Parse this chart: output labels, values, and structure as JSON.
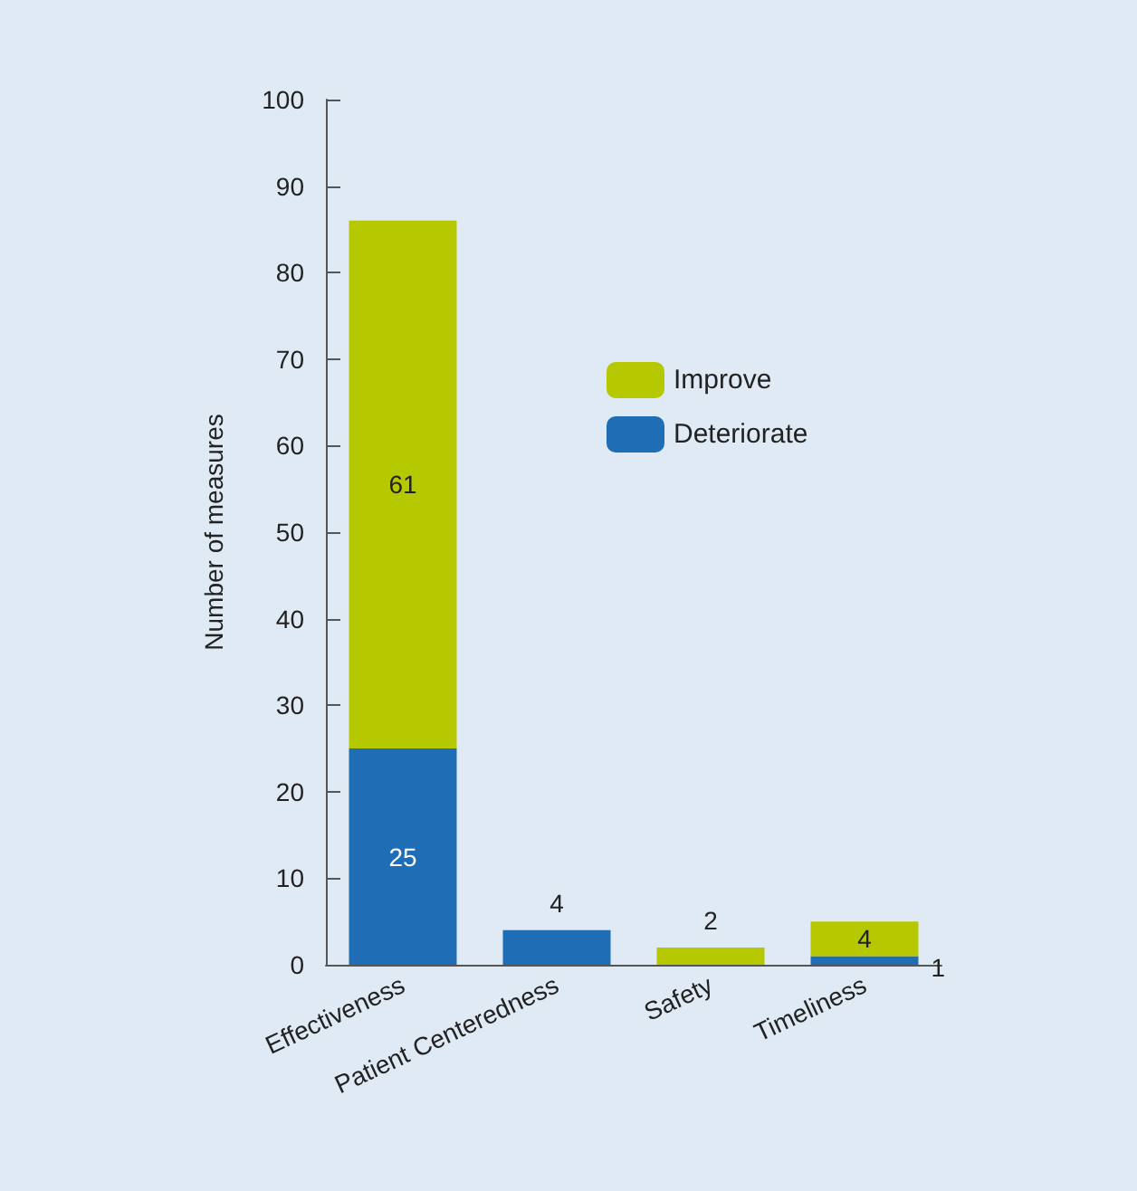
{
  "chart_data": {
    "type": "bar",
    "stacked": true,
    "ylabel": "Number of measures",
    "categories": [
      "Effectiveness",
      "Patient Centeredness",
      "Safety",
      "Timeliness"
    ],
    "series": [
      {
        "name": "Deteriorate",
        "color": "#1f6db5",
        "values": [
          25,
          4,
          0,
          1
        ],
        "value_labels": [
          "25",
          "4",
          null,
          "1"
        ]
      },
      {
        "name": "Improve",
        "color": "#b5c800",
        "values": [
          61,
          0,
          2,
          4
        ],
        "value_labels": [
          "61",
          null,
          "2",
          "4"
        ]
      }
    ],
    "ylim": [
      0,
      100
    ],
    "yticks": [
      0,
      10,
      20,
      30,
      40,
      50,
      60,
      70,
      80,
      90,
      100
    ],
    "grid": false,
    "legend": "top right"
  }
}
